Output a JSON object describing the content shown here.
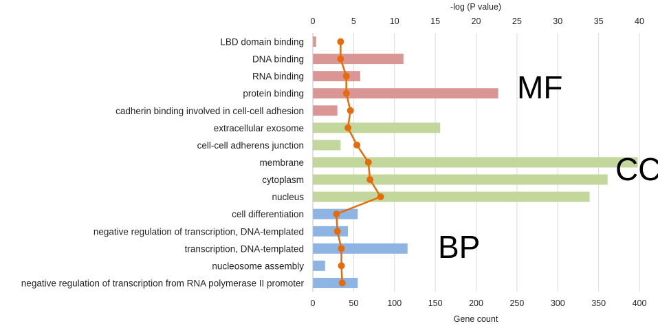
{
  "chart_data": {
    "type": "bar",
    "orientation": "horizontal",
    "title": "",
    "categories": [
      "LBD domain binding",
      "DNA binding",
      "RNA binding",
      "protein binding",
      "cadherin binding involved in cell-cell adhesion",
      "extracellular exosome",
      "cell-cell adherens junction",
      "membrane",
      "cytoplasm",
      "nucleus",
      "cell differentiation",
      "negative regulation of transcription, DNA-templated",
      "transcription, DNA-templated",
      "nucleosome assembly",
      "negative regulation of transcription from RNA polymerase II promoter"
    ],
    "groups": [
      "MF",
      "MF",
      "MF",
      "MF",
      "MF",
      "CC",
      "CC",
      "CC",
      "CC",
      "CC",
      "BP",
      "BP",
      "BP",
      "BP",
      "BP"
    ],
    "group_labels": [
      "MF",
      "CC",
      "BP"
    ],
    "group_colors": {
      "MF": "#d99694",
      "CC": "#c3d69b",
      "BP": "#8eb4e3"
    },
    "series": [
      {
        "name": "Gene count",
        "kind": "bar",
        "axis": "bottom",
        "values": [
          4,
          111,
          58,
          227,
          30,
          156,
          34,
          398,
          361,
          339,
          55,
          43,
          116,
          15,
          55
        ]
      },
      {
        "name": "-log (P value)",
        "kind": "line",
        "axis": "top",
        "color": "#e46c0a",
        "values": [
          3.4,
          3.4,
          4.1,
          4.1,
          4.6,
          4.3,
          5.4,
          6.8,
          7.0,
          8.3,
          2.9,
          3.0,
          3.5,
          3.5,
          3.6
        ]
      }
    ],
    "xlabel": "Gene count",
    "x2label": "-log (P value)",
    "xlim": [
      0,
      400
    ],
    "x2lim": [
      0,
      40
    ],
    "xticks": [
      0,
      50,
      100,
      150,
      200,
      250,
      300,
      350,
      400
    ],
    "x2ticks": [
      0,
      5,
      10,
      15,
      20,
      25,
      30,
      35,
      40
    ],
    "grid": true
  }
}
